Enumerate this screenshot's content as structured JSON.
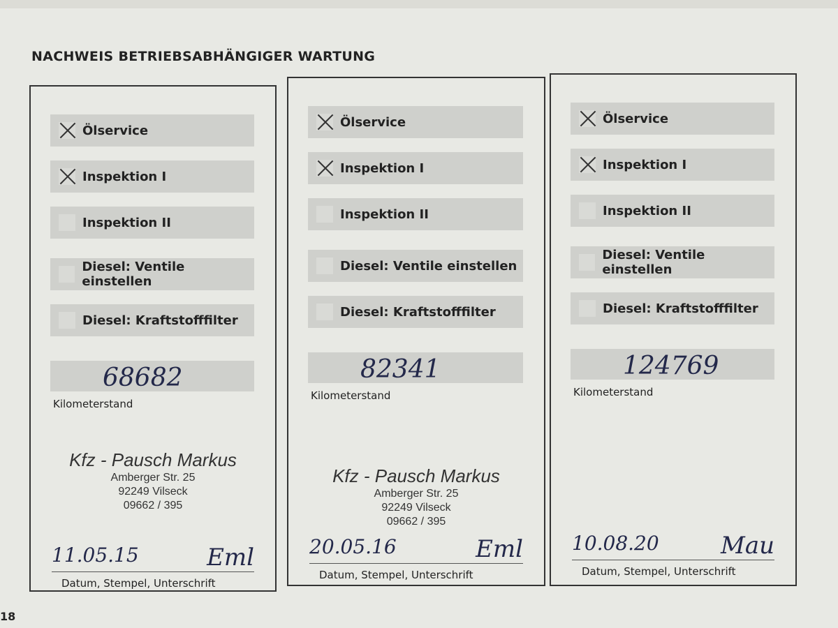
{
  "title": "NACHWEIS BETRIEBSABHÄNGIGER WARTUNG",
  "page_number": "18",
  "km_label": "Kilometerstand",
  "footer_label": "Datum, Stempel, Unterschrift",
  "items": [
    "Ölservice",
    "Inspektion I",
    "Inspektion II",
    "Diesel: Ventile einstellen",
    "Diesel: Kraftstofffilter"
  ],
  "entries": [
    {
      "checked": [
        true,
        true,
        false,
        false,
        false
      ],
      "km": "68682",
      "stamp": {
        "name": "Kfz - Pausch Markus",
        "street": "Amberger Str. 25",
        "city": "92249 Vilseck",
        "phone": "09662 / 395"
      },
      "date": "11.05.15",
      "signature": "Eml"
    },
    {
      "checked": [
        true,
        true,
        false,
        false,
        false
      ],
      "km": "82341",
      "stamp": {
        "name": "Kfz - Pausch Markus",
        "street": "Amberger Str. 25",
        "city": "92249 Vilseck",
        "phone": "09662 / 395"
      },
      "date": "20.05.16",
      "signature": "Eml"
    },
    {
      "checked": [
        true,
        true,
        false,
        false,
        false
      ],
      "km": "124769",
      "stamp": null,
      "date": "10.08.20",
      "signature": "Mau"
    }
  ]
}
